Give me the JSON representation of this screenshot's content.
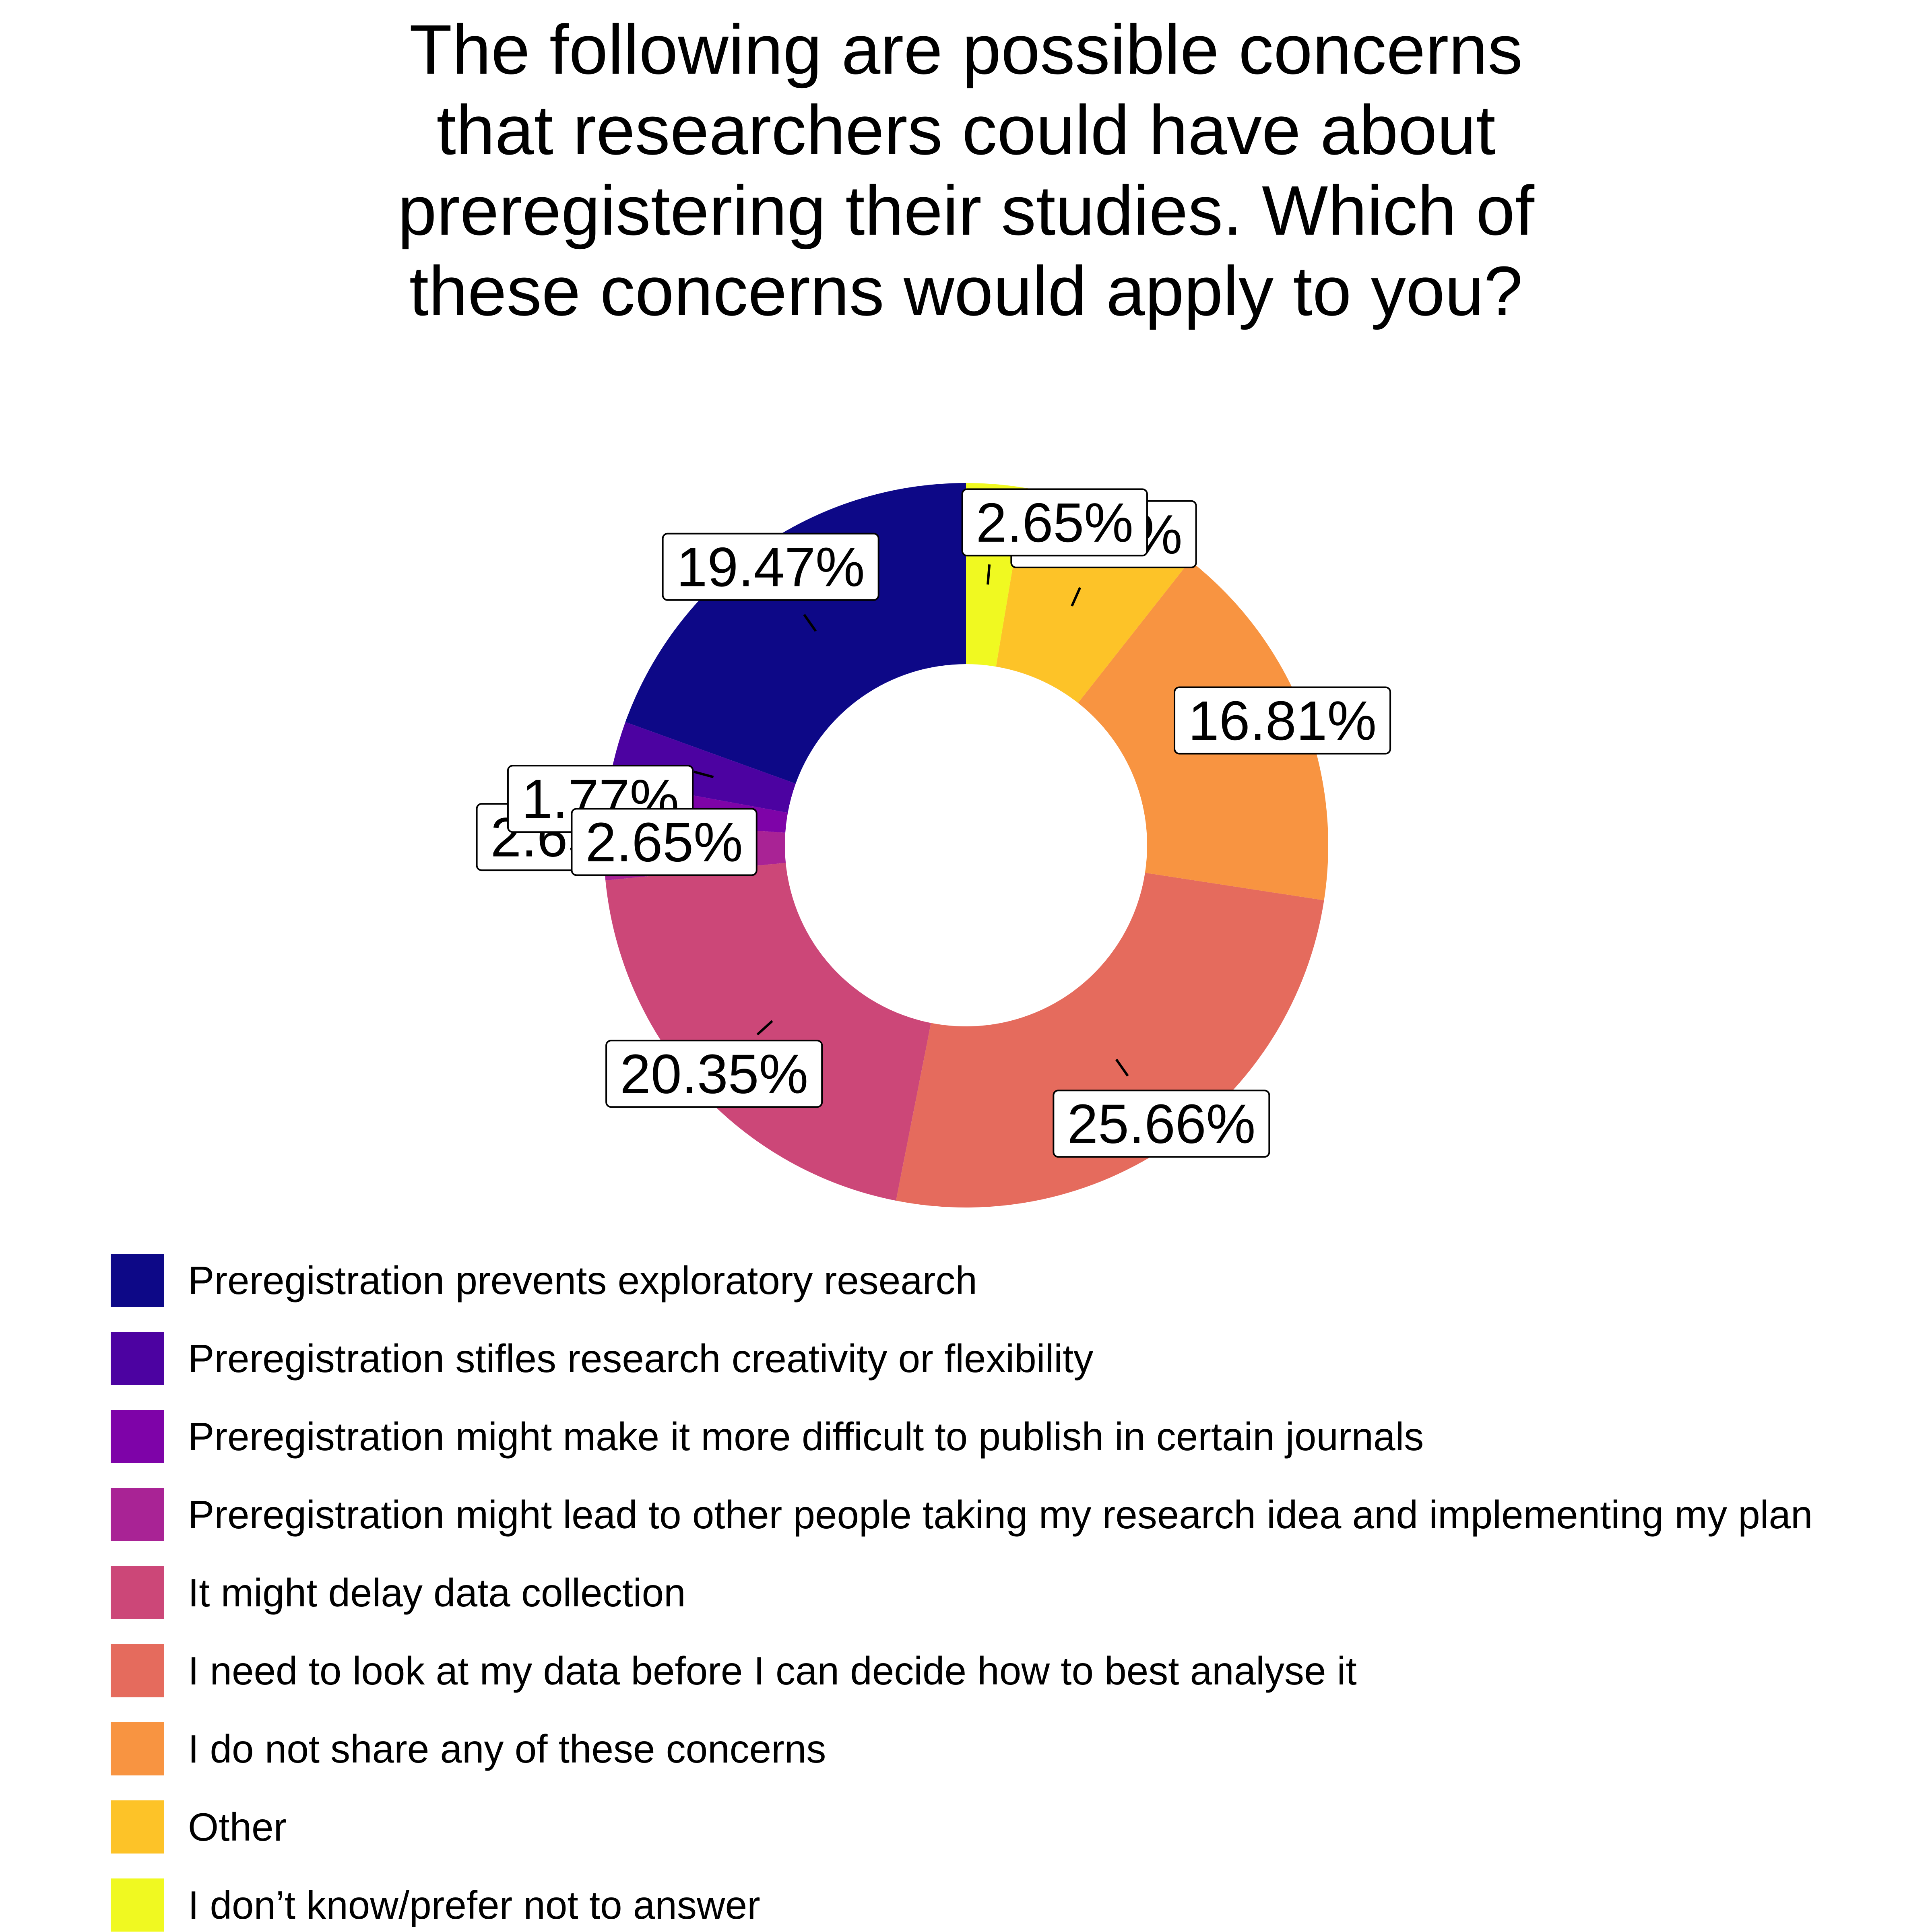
{
  "chart_data": {
    "type": "pie",
    "subtype": "donut",
    "title_lines": [
      "The following are possible concerns",
      "that researchers could have about",
      "preregistering their studies. Which of",
      "these concerns would apply to you?"
    ],
    "slices": [
      {
        "label": "Preregistration prevents exploratory research",
        "value": 19.47,
        "display": "19.47%",
        "color": "#0d0887"
      },
      {
        "label": "Preregistration stifles research creativity or flexibility",
        "value": 2.65,
        "display": "2.65%",
        "color": "#4c02a1"
      },
      {
        "label": "Preregistration might make it more difficult to publish in certain journals",
        "value": 1.77,
        "display": "1.77%",
        "color": "#7e03a8"
      },
      {
        "label": "Preregistration might lead to other people taking my research idea and implementing my plan",
        "value": 2.65,
        "display": "2.65%",
        "color": "#a92395"
      },
      {
        "label": "It might delay data collection",
        "value": 20.35,
        "display": "20.35%",
        "color": "#cc4778"
      },
      {
        "label": "I need to look at my data before I can decide how to best analyse it",
        "value": 25.66,
        "display": "25.66%",
        "color": "#e56b5d"
      },
      {
        "label": "I do not share any of these concerns",
        "value": 16.81,
        "display": "16.81%",
        "color": "#f89441"
      },
      {
        "label": "Other",
        "value": 7.96,
        "display": "7.96%",
        "color": "#fdc328"
      },
      {
        "label": "I don’t know/prefer not to answer",
        "value": 2.65,
        "display": "2.65%",
        "color": "#f0f921"
      }
    ],
    "legend_position": "bottom"
  }
}
